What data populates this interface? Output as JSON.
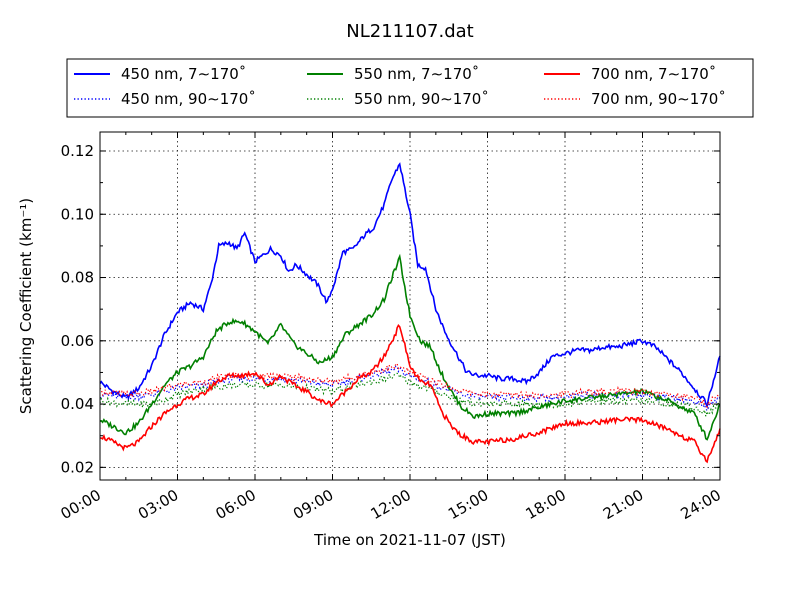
{
  "chart_data": {
    "type": "line",
    "title": "NL211107.dat",
    "xlabel": "Time on 2021-11-07 (JST)",
    "ylabel": "Scattering Coefficient (km⁻¹)",
    "xlim": [
      0,
      24
    ],
    "ylim": [
      0.016,
      0.126
    ],
    "xtick_labels": [
      "00:00",
      "03:00",
      "06:00",
      "09:00",
      "12:00",
      "15:00",
      "18:00",
      "21:00",
      "24:00"
    ],
    "ytick_labels": [
      "0.02",
      "0.04",
      "0.06",
      "0.08",
      "0.10",
      "0.12"
    ],
    "grid": true,
    "legend_position": "top, above plot",
    "x_units": "hours since 00:00",
    "series": [
      {
        "name": "450 nm, 7∼170˚",
        "color": "#0000ff",
        "style": "solid",
        "x": [
          0,
          0.5,
          1,
          1.5,
          2,
          2.5,
          3,
          3.5,
          4,
          4.3,
          4.6,
          5,
          5.3,
          5.6,
          6,
          6.3,
          6.6,
          7,
          7.3,
          7.6,
          8,
          8.4,
          8.8,
          9.1,
          9.4,
          9.8,
          10.2,
          10.6,
          11,
          11.3,
          11.6,
          12,
          12.3,
          12.6,
          13,
          13.4,
          13.8,
          14.2,
          14.6,
          15,
          15.5,
          16,
          16.5,
          17,
          17.5,
          18,
          18.5,
          19,
          19.5,
          20,
          20.5,
          21,
          21.5,
          22,
          22.5,
          23,
          23.5,
          24
        ],
        "y": [
          0.047,
          0.044,
          0.042,
          0.045,
          0.052,
          0.062,
          0.069,
          0.072,
          0.07,
          0.078,
          0.09,
          0.091,
          0.089,
          0.094,
          0.085,
          0.087,
          0.089,
          0.087,
          0.082,
          0.084,
          0.081,
          0.078,
          0.072,
          0.079,
          0.088,
          0.089,
          0.093,
          0.096,
          0.103,
          0.111,
          0.116,
          0.1,
          0.084,
          0.083,
          0.07,
          0.062,
          0.056,
          0.05,
          0.049,
          0.049,
          0.048,
          0.048,
          0.047,
          0.05,
          0.055,
          0.056,
          0.057,
          0.057,
          0.058,
          0.058,
          0.059,
          0.06,
          0.058,
          0.054,
          0.05,
          0.045,
          0.04,
          0.055
        ]
      },
      {
        "name": "450 nm, 90∼170˚",
        "color": "#0000ff",
        "style": "dotted",
        "x": [
          0,
          1,
          2,
          3,
          4,
          5,
          6,
          7,
          8,
          9,
          10,
          11,
          11.5,
          12,
          13,
          14,
          15,
          16,
          17,
          18,
          19,
          20,
          21,
          22,
          23,
          23.5,
          24
        ],
        "y": [
          0.043,
          0.042,
          0.043,
          0.045,
          0.046,
          0.048,
          0.048,
          0.048,
          0.047,
          0.046,
          0.048,
          0.05,
          0.051,
          0.049,
          0.046,
          0.043,
          0.042,
          0.042,
          0.042,
          0.042,
          0.043,
          0.043,
          0.043,
          0.042,
          0.041,
          0.039,
          0.042
        ]
      },
      {
        "name": "550 nm, 7∼170˚",
        "color": "#008000",
        "style": "solid",
        "x": [
          0,
          0.5,
          1,
          1.5,
          2,
          2.5,
          3,
          3.5,
          4,
          4.5,
          5,
          5.5,
          6,
          6.5,
          7,
          7.5,
          8,
          8.5,
          9,
          9.5,
          10,
          10.5,
          11,
          11.3,
          11.6,
          12,
          12.4,
          12.8,
          13.2,
          13.6,
          14,
          14.5,
          15,
          16,
          17,
          18,
          19,
          20,
          21,
          22,
          23,
          23.5,
          24
        ],
        "y": [
          0.035,
          0.033,
          0.031,
          0.034,
          0.04,
          0.046,
          0.05,
          0.052,
          0.055,
          0.063,
          0.066,
          0.066,
          0.063,
          0.059,
          0.065,
          0.059,
          0.056,
          0.053,
          0.055,
          0.062,
          0.065,
          0.068,
          0.073,
          0.08,
          0.086,
          0.068,
          0.06,
          0.058,
          0.05,
          0.044,
          0.039,
          0.036,
          0.037,
          0.037,
          0.039,
          0.041,
          0.042,
          0.043,
          0.044,
          0.041,
          0.037,
          0.029,
          0.04
        ]
      },
      {
        "name": "550 nm, 90∼170˚",
        "color": "#008000",
        "style": "dotted",
        "x": [
          0,
          1,
          2,
          3,
          4,
          5,
          6,
          7,
          8,
          9,
          10,
          11,
          11.5,
          12,
          13,
          14,
          15,
          16,
          17,
          18,
          19,
          20,
          21,
          22,
          23,
          23.5,
          24
        ],
        "y": [
          0.041,
          0.04,
          0.04,
          0.043,
          0.045,
          0.046,
          0.046,
          0.046,
          0.045,
          0.044,
          0.046,
          0.048,
          0.049,
          0.047,
          0.044,
          0.041,
          0.04,
          0.04,
          0.04,
          0.04,
          0.041,
          0.041,
          0.041,
          0.04,
          0.039,
          0.037,
          0.04
        ]
      },
      {
        "name": "700 nm, 7∼170˚",
        "color": "#ff0000",
        "style": "solid",
        "x": [
          0,
          0.5,
          1,
          1.5,
          2,
          2.5,
          3,
          3.5,
          4,
          4.5,
          5,
          5.5,
          6,
          6.5,
          7,
          7.5,
          8,
          8.5,
          9,
          9.5,
          10,
          10.5,
          11,
          11.3,
          11.6,
          12,
          12.4,
          12.8,
          13.2,
          13.6,
          14,
          14.5,
          15,
          16,
          17,
          18,
          19,
          20,
          21,
          22,
          23,
          23.5,
          24
        ],
        "y": [
          0.03,
          0.028,
          0.026,
          0.028,
          0.033,
          0.037,
          0.04,
          0.042,
          0.043,
          0.047,
          0.049,
          0.049,
          0.05,
          0.046,
          0.049,
          0.046,
          0.044,
          0.041,
          0.04,
          0.044,
          0.048,
          0.05,
          0.055,
          0.06,
          0.065,
          0.052,
          0.047,
          0.046,
          0.038,
          0.033,
          0.03,
          0.028,
          0.028,
          0.029,
          0.031,
          0.034,
          0.034,
          0.035,
          0.035,
          0.032,
          0.028,
          0.022,
          0.032
        ]
      },
      {
        "name": "700 nm, 90∼170˚",
        "color": "#ff0000",
        "style": "dotted",
        "x": [
          0,
          1,
          2,
          3,
          4,
          5,
          6,
          7,
          8,
          9,
          10,
          11,
          11.5,
          12,
          13,
          14,
          15,
          16,
          17,
          18,
          19,
          20,
          21,
          22,
          23,
          23.5,
          24
        ],
        "y": [
          0.044,
          0.043,
          0.044,
          0.046,
          0.047,
          0.049,
          0.049,
          0.049,
          0.048,
          0.047,
          0.049,
          0.051,
          0.052,
          0.05,
          0.047,
          0.044,
          0.043,
          0.043,
          0.043,
          0.043,
          0.044,
          0.044,
          0.044,
          0.043,
          0.042,
          0.04,
          0.043
        ]
      }
    ]
  }
}
